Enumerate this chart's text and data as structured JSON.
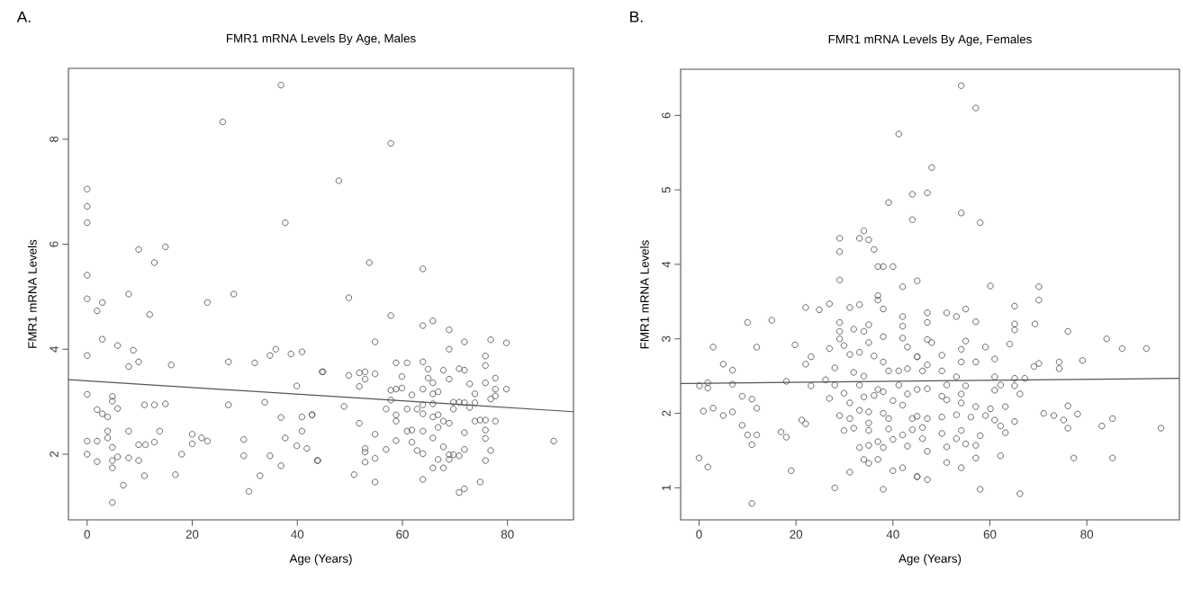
{
  "chart_data": [
    {
      "type": "scatter",
      "title": "FMR1 mRNA Levels By Age, Males",
      "xlabel": "Age (Years)",
      "ylabel": "FMR1 mRNA Levels",
      "annotations": [
        "A."
      ],
      "xlim": [
        -3.56,
        92.56
      ],
      "ylim": [
        0.75,
        9.35
      ],
      "xticks": [
        0,
        20,
        40,
        60,
        80
      ],
      "yticks": [
        2,
        4,
        6,
        8
      ],
      "series": [
        {
          "marker": "circle",
          "color": "#444444",
          "x": [
            36.9,
            25.8,
            0,
            0,
            0,
            37.7,
            9.8,
            14.9,
            12.8,
            0,
            7.9,
            27.9,
            0,
            2.9,
            1.9,
            22.9,
            11.9,
            2.9,
            5.8,
            8.8,
            0,
            7.9,
            9.8,
            16.0,
            26.9,
            31.9,
            34.8,
            35.9,
            38.8,
            40.9,
            44.7,
            39.9,
            0,
            4.8,
            4.8,
            5.8,
            1.9,
            2.9,
            3.9,
            10.9,
            12.8,
            14.9,
            26.9,
            33.8,
            36.9,
            40.9,
            42.8,
            3.9,
            3.9,
            7.9,
            13.8,
            0,
            1.9,
            4.8,
            9.8,
            11.1,
            12.8,
            20.0,
            20.0,
            21.8,
            22.9,
            29.8,
            37.7,
            40.9,
            39.9,
            41.8,
            0,
            1.9,
            4.8,
            4.8,
            5.8,
            7.9,
            9.8,
            18.0,
            29.8,
            34.8,
            36.9,
            43.9,
            10.9,
            16.8,
            6.9,
            32.9,
            30.8,
            4.8,
            57.8,
            47.9,
            53.7,
            63.9,
            49.8,
            57.8,
            63.9,
            65.8,
            68.9,
            54.8,
            71.8,
            76.8,
            79.8,
            68.9,
            75.8,
            75.8,
            58.8,
            60.9,
            63.9,
            64.9,
            67.8,
            70.8,
            71.8,
            44.9,
            49.8,
            51.8,
            52.9,
            54.8,
            52.9,
            59.9,
            64.9,
            68.9,
            77.7,
            51.8,
            57.8,
            58.8,
            59.9,
            63.9,
            65.8,
            66.8,
            72.8,
            75.8,
            77.7,
            79.8,
            61.8,
            65.8,
            73.8,
            77.7,
            76.8,
            57.8,
            65.8,
            69.7,
            70.8,
            71.8,
            73.8,
            48.9,
            56.9,
            60.9,
            62.8,
            63.9,
            69.7,
            72.8,
            42.8,
            58.8,
            58.8,
            63.9,
            65.8,
            66.8,
            67.8,
            68.9,
            66.8,
            73.8,
            74.8,
            75.8,
            77.7,
            51.8,
            60.9,
            61.8,
            63.9,
            71.8,
            75.8,
            54.8,
            58.8,
            61.8,
            65.8,
            75.8,
            88.8,
            52.9,
            52.9,
            56.9,
            62.8,
            63.9,
            67.8,
            68.9,
            69.7,
            70.8,
            71.8,
            76.8,
            43.8,
            52.9,
            54.8,
            66.8,
            68.9,
            75.8,
            65.8,
            67.8,
            50.8,
            54.8,
            63.9,
            74.8,
            70.8,
            71.8
          ],
          "values": [
            9.03,
            8.33,
            7.05,
            6.72,
            6.41,
            6.41,
            5.9,
            5.95,
            5.65,
            5.41,
            5.05,
            5.05,
            4.96,
            4.89,
            4.73,
            4.89,
            4.66,
            4.19,
            4.07,
            3.98,
            3.88,
            3.67,
            3.76,
            3.7,
            3.76,
            3.74,
            3.88,
            4.0,
            3.91,
            3.95,
            3.57,
            3.3,
            3.14,
            3.1,
            3.01,
            2.87,
            2.85,
            2.77,
            2.71,
            2.94,
            2.94,
            2.96,
            2.94,
            2.99,
            2.7,
            2.71,
            2.75,
            2.44,
            2.31,
            2.44,
            2.44,
            2.25,
            2.25,
            2.13,
            2.18,
            2.18,
            2.23,
            2.38,
            2.2,
            2.31,
            2.25,
            2.28,
            2.31,
            2.44,
            2.16,
            2.11,
            2.0,
            1.86,
            1.88,
            1.74,
            1.95,
            1.93,
            1.88,
            2.0,
            1.97,
            1.97,
            1.78,
            1.88,
            1.59,
            1.61,
            1.41,
            1.59,
            1.29,
            1.08,
            7.92,
            7.21,
            5.65,
            5.53,
            4.98,
            4.64,
            4.45,
            4.54,
            4.37,
            4.14,
            4.14,
            4.18,
            4.12,
            4.0,
            3.87,
            3.69,
            3.74,
            3.74,
            3.76,
            3.62,
            3.6,
            3.63,
            3.6,
            3.57,
            3.5,
            3.55,
            3.57,
            3.53,
            3.43,
            3.48,
            3.45,
            3.43,
            3.45,
            3.29,
            3.22,
            3.24,
            3.26,
            3.24,
            3.36,
            3.19,
            3.34,
            3.36,
            3.24,
            3.24,
            3.13,
            3.15,
            3.15,
            3.11,
            3.05,
            3.03,
            2.96,
            2.99,
            2.99,
            2.98,
            2.98,
            2.91,
            2.86,
            2.86,
            2.86,
            2.94,
            2.86,
            2.89,
            2.75,
            2.75,
            2.63,
            2.77,
            2.71,
            2.75,
            2.63,
            2.59,
            2.51,
            2.63,
            2.65,
            2.65,
            2.63,
            2.59,
            2.44,
            2.46,
            2.44,
            2.41,
            2.46,
            2.38,
            2.26,
            2.23,
            2.31,
            2.3,
            2.25,
            2.11,
            2.04,
            2.09,
            2.07,
            2.01,
            2.14,
            1.99,
            1.99,
            1.97,
            2.09,
            2.07,
            1.88,
            1.85,
            1.92,
            1.9,
            1.9,
            1.88,
            1.74,
            1.74,
            1.61,
            1.47,
            1.52,
            1.47,
            1.27,
            1.34
          ]
        },
        {
          "type": "line",
          "color": "#555555",
          "x": [
            -3.56,
            92.56
          ],
          "values": [
            3.42,
            2.81
          ]
        }
      ]
    },
    {
      "type": "scatter",
      "title": "FMR1 mRNA Levels By Age, Females",
      "xlabel": "Age (Years)",
      "ylabel": "FMR1 mRNA Levels",
      "annotations": [
        "B."
      ],
      "xlim": [
        -3.8,
        99.1
      ],
      "ylim": [
        0.57,
        6.62
      ],
      "xticks": [
        0,
        20,
        40,
        60,
        80
      ],
      "yticks": [
        1,
        2,
        3,
        4,
        5,
        6
      ],
      "series": [
        {
          "marker": "circle",
          "color": "#444444",
          "x": [
            41.2,
            44.0,
            39.1,
            44.0,
            34.0,
            33.1,
            35.0,
            29.0,
            36.1,
            29.0,
            36.9,
            38.0,
            40.0,
            29.0,
            45.0,
            42.0,
            36.9,
            36.9,
            38.0,
            26.9,
            24.8,
            22.0,
            31.1,
            33.1,
            10.0,
            15.0,
            29.0,
            35.0,
            42.0,
            42.0,
            2.9,
            11.9,
            19.8,
            29.0,
            29.0,
            31.9,
            34.0,
            35.0,
            29.9,
            26.9,
            38.0,
            42.0,
            43.0,
            31.1,
            33.1,
            36.1,
            38.0,
            23.1,
            22.0,
            5.0,
            6.9,
            28.0,
            31.9,
            39.1,
            41.2,
            45.0,
            43.0,
            26.1,
            18.0,
            34.0,
            0.1,
            1.8,
            1.8,
            6.9,
            23.1,
            28.0,
            29.9,
            33.1,
            36.9,
            38.0,
            41.2,
            43.0,
            45.0,
            8.9,
            10.9,
            26.9,
            31.1,
            34.0,
            36.1,
            40.0,
            42.0,
            0.9,
            2.9,
            5.0,
            6.9,
            11.9,
            29.0,
            33.1,
            35.0,
            38.0,
            39.1,
            44.0,
            21.2,
            22.0,
            31.1,
            35.0,
            8.9,
            10.0,
            11.9,
            10.9,
            16.9,
            18.0,
            29.9,
            31.9,
            35.0,
            39.1,
            40.0,
            42.0,
            44.0,
            33.1,
            35.0,
            36.9,
            38.0,
            34.0,
            35.0,
            36.9,
            43.0,
            31.1,
            40.0,
            42.0,
            45.0,
            0,
            1.8,
            19.0,
            28.0,
            38.0,
            10.9,
            54.1,
            57.1,
            48.0,
            47.1,
            54.1,
            58.0,
            60.1,
            70.1,
            70.1,
            65.1,
            55.0,
            47.1,
            51.1,
            53.1,
            47.1,
            57.1,
            65.1,
            65.1,
            69.3,
            76.1,
            84.1,
            87.3,
            92.3,
            47.1,
            48.0,
            55.0,
            54.1,
            59.1,
            64.1,
            50.1,
            45.0,
            54.1,
            57.1,
            61.0,
            69.1,
            70.1,
            74.3,
            74.3,
            79.1,
            46.1,
            50.1,
            47.1,
            61.0,
            65.1,
            67.2,
            53.1,
            51.1,
            55.0,
            62.2,
            65.1,
            61.0,
            66.2,
            54.1,
            47.1,
            50.1,
            51.1,
            54.1,
            57.1,
            63.2,
            60.1,
            76.1,
            71.1,
            73.2,
            78.1,
            75.2,
            85.3,
            83.1,
            76.1,
            95.3,
            45.0,
            47.1,
            50.1,
            53.1,
            56.1,
            59.1,
            61.0,
            65.1,
            62.2,
            63.2,
            46.1,
            50.1,
            54.1,
            58.0,
            46.1,
            53.1,
            55.0,
            57.1,
            51.1,
            47.1,
            57.1,
            62.2,
            77.3,
            85.3,
            51.1,
            54.1,
            45.0,
            47.1,
            58.0,
            66.2
          ],
          "values": [
            5.75,
            4.94,
            4.83,
            4.6,
            4.45,
            4.35,
            4.33,
            4.35,
            4.2,
            4.17,
            3.97,
            3.97,
            3.97,
            3.79,
            3.78,
            3.7,
            3.58,
            3.52,
            3.4,
            3.47,
            3.39,
            3.42,
            3.42,
            3.46,
            3.22,
            3.25,
            3.22,
            3.19,
            3.3,
            3.17,
            2.89,
            2.89,
            2.92,
            3.1,
            3.0,
            3.13,
            3.1,
            2.95,
            2.91,
            2.87,
            3.03,
            3.01,
            2.89,
            2.79,
            2.82,
            2.77,
            2.69,
            2.76,
            2.66,
            2.66,
            2.58,
            2.61,
            2.55,
            2.57,
            2.57,
            2.76,
            2.6,
            2.45,
            2.43,
            2.5,
            2.37,
            2.41,
            2.34,
            2.39,
            2.37,
            2.38,
            2.27,
            2.38,
            2.32,
            2.29,
            2.38,
            2.26,
            2.32,
            2.23,
            2.19,
            2.2,
            2.14,
            2.22,
            2.24,
            2.17,
            2.11,
            2.03,
            2.07,
            1.97,
            2.02,
            2.07,
            1.97,
            2.04,
            2.02,
            2.0,
            1.93,
            1.93,
            1.91,
            1.86,
            1.93,
            1.87,
            1.84,
            1.71,
            1.71,
            1.58,
            1.75,
            1.68,
            1.77,
            1.8,
            1.77,
            1.79,
            1.65,
            1.71,
            1.78,
            1.54,
            1.57,
            1.62,
            1.54,
            1.38,
            1.33,
            1.38,
            1.56,
            1.21,
            1.23,
            1.27,
            1.15,
            1.4,
            1.28,
            1.23,
            1.0,
            0.98,
            0.79,
            6.4,
            6.1,
            5.3,
            4.96,
            4.69,
            4.56,
            3.71,
            3.7,
            3.52,
            3.44,
            3.4,
            3.35,
            3.35,
            3.3,
            3.22,
            3.23,
            3.2,
            3.12,
            3.2,
            3.1,
            3.0,
            2.87,
            2.87,
            2.99,
            2.95,
            2.97,
            2.86,
            2.89,
            2.93,
            2.78,
            2.76,
            2.69,
            2.69,
            2.73,
            2.63,
            2.67,
            2.69,
            2.6,
            2.71,
            2.57,
            2.57,
            2.65,
            2.49,
            2.47,
            2.47,
            2.49,
            2.38,
            2.37,
            2.38,
            2.37,
            2.31,
            2.26,
            2.26,
            2.33,
            2.23,
            2.18,
            2.14,
            2.09,
            2.09,
            2.06,
            2.1,
            2.0,
            1.97,
            1.99,
            1.91,
            1.93,
            1.83,
            1.8,
            1.8,
            1.96,
            1.93,
            1.95,
            1.98,
            1.95,
            1.97,
            1.91,
            1.89,
            1.83,
            1.74,
            1.81,
            1.73,
            1.77,
            1.7,
            1.66,
            1.66,
            1.59,
            1.57,
            1.55,
            1.49,
            1.4,
            1.43,
            1.4,
            1.4,
            1.34,
            1.27,
            1.15,
            1.11,
            0.98,
            0.92
          ]
        },
        {
          "type": "line",
          "color": "#555555",
          "x": [
            -3.8,
            99.1
          ],
          "values": [
            2.4,
            2.47
          ]
        }
      ]
    }
  ]
}
